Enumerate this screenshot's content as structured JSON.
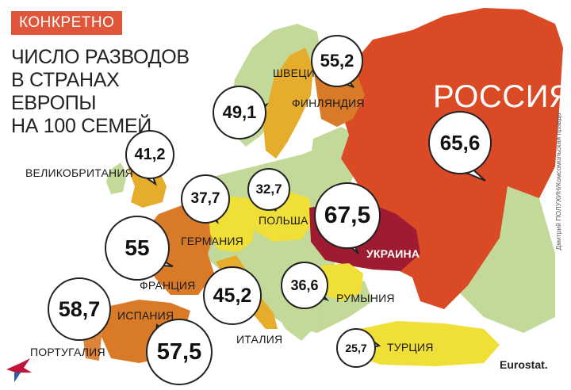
{
  "header": {
    "badge": "КОНКРЕТНО",
    "title_lines": [
      "ЧИСЛО РАЗВОДОВ",
      "В СТРАНАХ ЕВРОПЫ",
      "НА 100 СЕМЕЙ"
    ]
  },
  "colors": {
    "sea": "#ffffff",
    "neutral_land": "#c2d99a",
    "russia": "#d94a25",
    "ukraine": "#9e1b32",
    "high": "#d97a28",
    "medium": "#e6ad2c",
    "low": "#f0df36",
    "badge": "#e0563a"
  },
  "countries": {
    "russia": {
      "name": "РОССИЯ",
      "value": "65,6"
    },
    "ukraine": {
      "name": "УКРАИНА",
      "value": "67,5"
    },
    "finland": {
      "name": "ФИНЛЯНДИЯ",
      "value": "55,2"
    },
    "sweden": {
      "name": "ШВЕЦИЯ",
      "value": "49,1"
    },
    "uk": {
      "name": "ВЕЛИКОБРИТАНИЯ",
      "value": "41,2"
    },
    "germany": {
      "name": "ГЕРМАНИЯ",
      "value": "37,7"
    },
    "poland": {
      "name": "ПОЛЬША",
      "value": "32,7"
    },
    "france": {
      "name": "ФРАНЦИЯ",
      "value": "55"
    },
    "italy": {
      "name": "ИТАЛИЯ",
      "value": "45,2"
    },
    "romania": {
      "name": "РУМЫНИЯ",
      "value": "36,6"
    },
    "spain": {
      "name": "ИСПАНИЯ",
      "value": "57,5"
    },
    "portugal": {
      "name": "ПОРТУГАЛИЯ",
      "value": "58,7"
    },
    "turkey": {
      "name": "ТУРЦИЯ",
      "value": "25,7"
    }
  },
  "credit": "Дмитрий ПОЛУХИН/Комсомольская правда",
  "source": "Eurostat."
}
